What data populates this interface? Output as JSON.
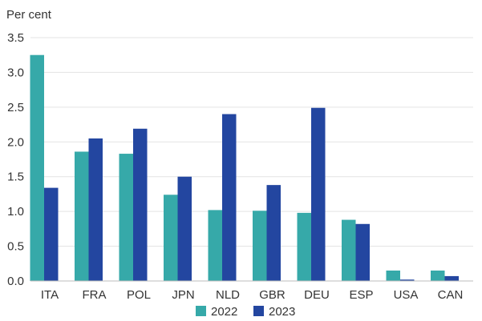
{
  "chart_data": {
    "type": "bar",
    "ylabel": "Per cent",
    "ylim": [
      0,
      3.5
    ],
    "yticks": [
      "0.0",
      "0.5",
      "1.0",
      "1.5",
      "2.0",
      "2.5",
      "3.0",
      "3.5"
    ],
    "grid": true,
    "legend_position": "bottom",
    "categories": [
      "ITA",
      "FRA",
      "POL",
      "JPN",
      "NLD",
      "GBR",
      "DEU",
      "ESP",
      "USA",
      "CAN"
    ],
    "series": [
      {
        "name": "2022",
        "color": "#36a9a9",
        "values": [
          3.25,
          1.86,
          1.83,
          1.24,
          1.02,
          1.01,
          0.98,
          0.88,
          0.15,
          0.15
        ]
      },
      {
        "name": "2023",
        "color": "#2346a0",
        "values": [
          1.34,
          2.05,
          2.19,
          1.5,
          2.4,
          1.38,
          2.49,
          0.82,
          0.02,
          0.07
        ]
      }
    ]
  }
}
